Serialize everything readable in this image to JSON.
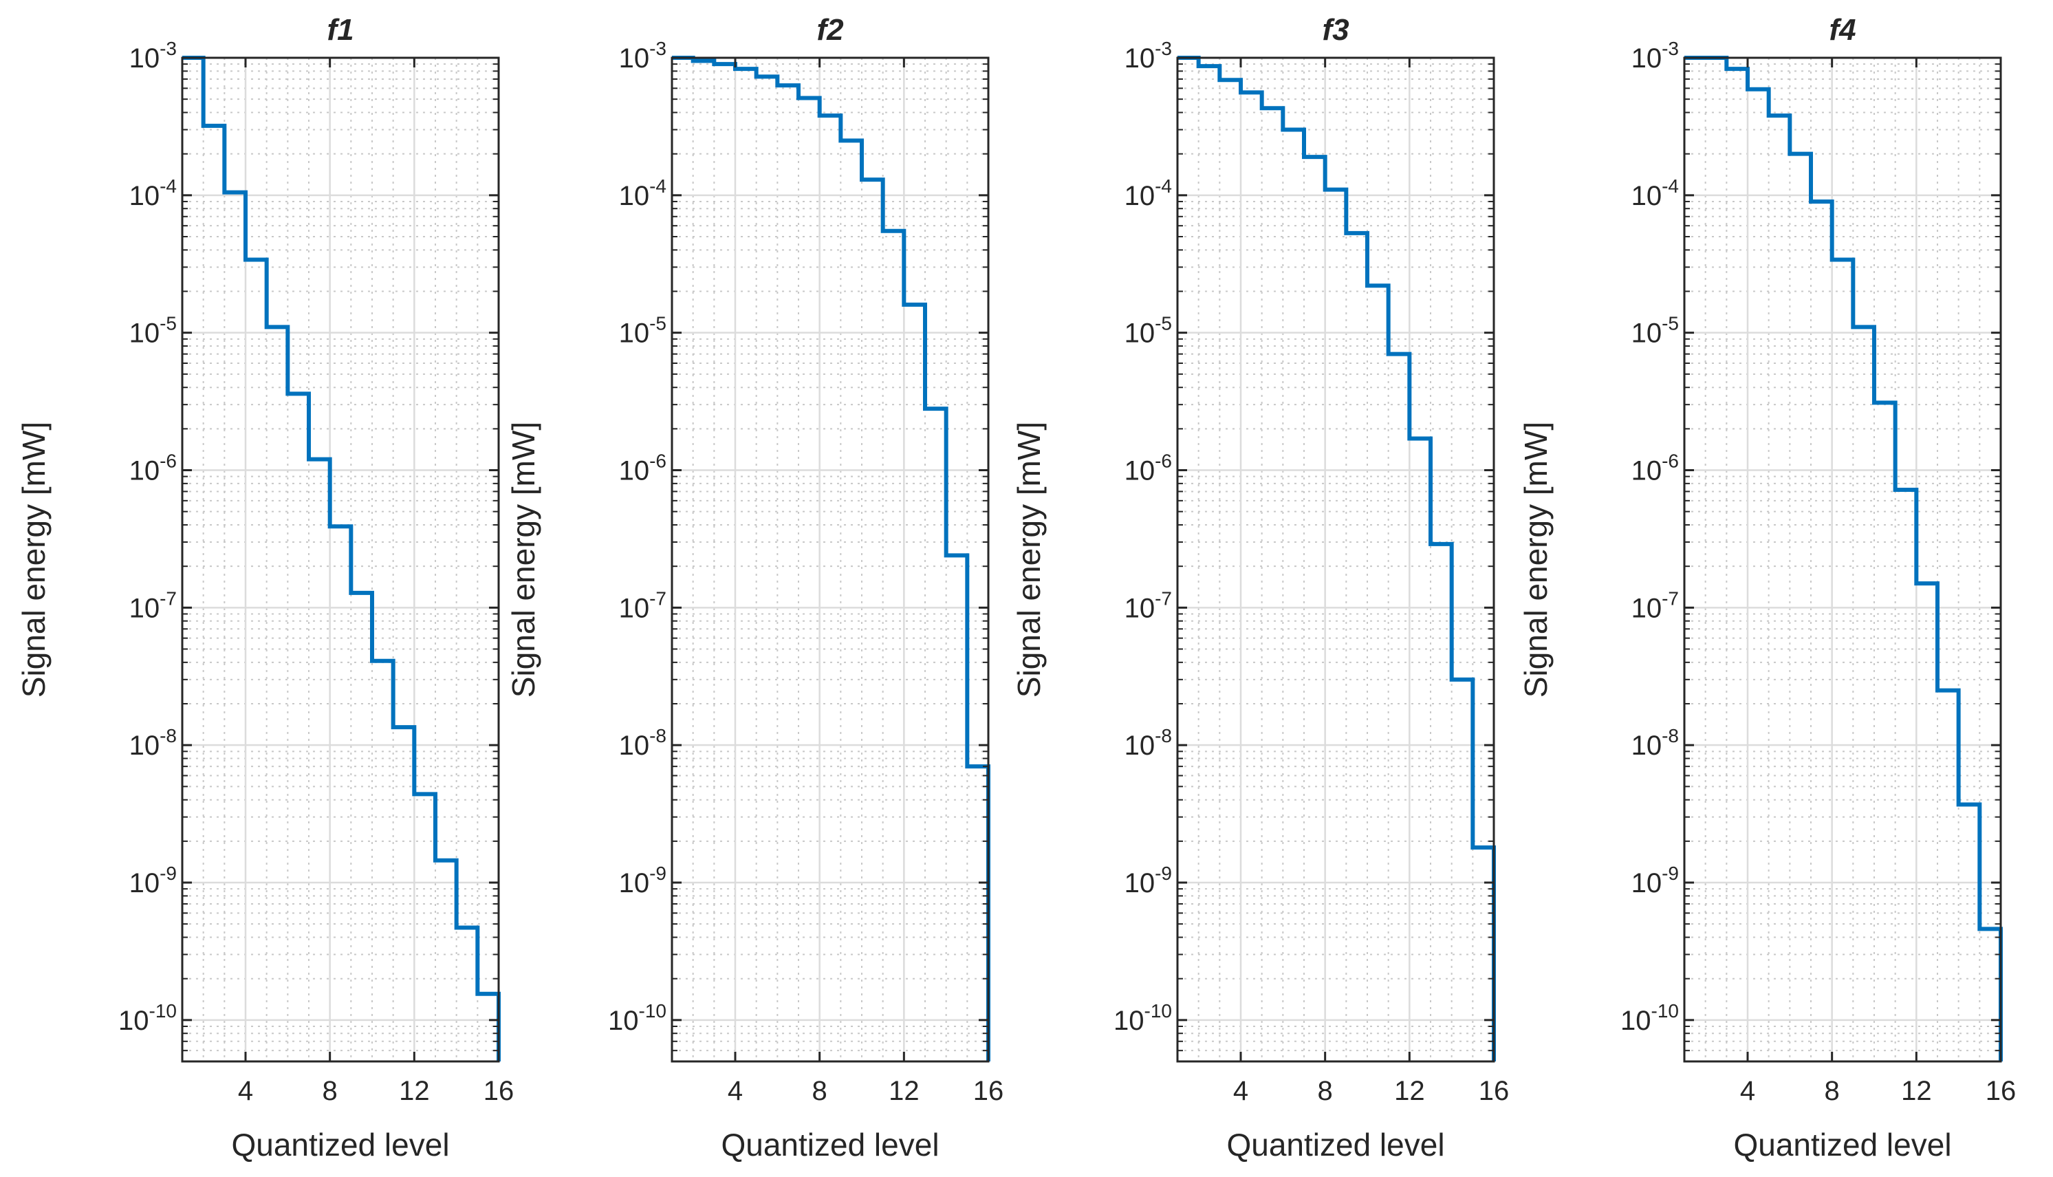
{
  "chart_data": [
    {
      "type": "line",
      "style": "stairs",
      "title": "f1",
      "xlabel": "Quantized level",
      "ylabel": "Signal  energy [mW]",
      "xscale": "linear",
      "yscale": "log",
      "xlim": [
        1,
        16
      ],
      "ylim": [
        5e-11,
        0.001
      ],
      "xticks": [
        4,
        8,
        12,
        16
      ],
      "yticks": [
        {
          "base": "10",
          "exp": "-10",
          "value": 1e-10
        },
        {
          "base": "10",
          "exp": "-9",
          "value": 1e-09
        },
        {
          "base": "10",
          "exp": "-8",
          "value": 1e-08
        },
        {
          "base": "10",
          "exp": "-7",
          "value": 1e-07
        },
        {
          "base": "10",
          "exp": "-6",
          "value": 1e-06
        },
        {
          "base": "10",
          "exp": "-5",
          "value": 1e-05
        },
        {
          "base": "10",
          "exp": "-4",
          "value": 0.0001
        },
        {
          "base": "10",
          "exp": "-3",
          "value": 0.001
        }
      ],
      "grid": "on",
      "line_color": "#0072BD",
      "x": [
        1,
        2,
        3,
        4,
        5,
        6,
        7,
        8,
        9,
        10,
        11,
        12,
        13,
        14,
        15,
        16
      ],
      "y": [
        0.001,
        0.00032,
        0.000105,
        3.4e-05,
        1.1e-05,
        3.6e-06,
        1.2e-06,
        3.9e-07,
        1.28e-07,
        4.1e-08,
        1.35e-08,
        4.4e-09,
        1.45e-09,
        4.7e-10,
        1.55e-10,
        5e-11
      ]
    },
    {
      "type": "line",
      "style": "stairs",
      "title": "f2",
      "xlabel": "Quantized level",
      "ylabel": "Signal  energy [mW]",
      "xscale": "linear",
      "yscale": "log",
      "xlim": [
        1,
        16
      ],
      "ylim": [
        5e-11,
        0.001
      ],
      "xticks": [
        4,
        8,
        12,
        16
      ],
      "yticks": [
        {
          "base": "10",
          "exp": "-10",
          "value": 1e-10
        },
        {
          "base": "10",
          "exp": "-9",
          "value": 1e-09
        },
        {
          "base": "10",
          "exp": "-8",
          "value": 1e-08
        },
        {
          "base": "10",
          "exp": "-7",
          "value": 1e-07
        },
        {
          "base": "10",
          "exp": "-6",
          "value": 1e-06
        },
        {
          "base": "10",
          "exp": "-5",
          "value": 1e-05
        },
        {
          "base": "10",
          "exp": "-4",
          "value": 0.0001
        },
        {
          "base": "10",
          "exp": "-3",
          "value": 0.001
        }
      ],
      "grid": "on",
      "line_color": "#0072BD",
      "x": [
        1,
        2,
        3,
        4,
        5,
        6,
        7,
        8,
        9,
        10,
        11,
        12,
        13,
        14,
        15,
        16
      ],
      "y": [
        0.001,
        0.00095,
        0.0009,
        0.00083,
        0.00073,
        0.00063,
        0.00051,
        0.00038,
        0.00025,
        0.00013,
        5.5e-05,
        1.6e-05,
        2.8e-06,
        2.4e-07,
        7e-09,
        5e-11
      ]
    },
    {
      "type": "line",
      "style": "stairs",
      "title": "f3",
      "xlabel": "Quantized level",
      "ylabel": "Signal  energy [mW]",
      "xscale": "linear",
      "yscale": "log",
      "xlim": [
        1,
        16
      ],
      "ylim": [
        5e-11,
        0.001
      ],
      "xticks": [
        4,
        8,
        12,
        16
      ],
      "yticks": [
        {
          "base": "10",
          "exp": "-10",
          "value": 1e-10
        },
        {
          "base": "10",
          "exp": "-9",
          "value": 1e-09
        },
        {
          "base": "10",
          "exp": "-8",
          "value": 1e-08
        },
        {
          "base": "10",
          "exp": "-7",
          "value": 1e-07
        },
        {
          "base": "10",
          "exp": "-6",
          "value": 1e-06
        },
        {
          "base": "10",
          "exp": "-5",
          "value": 1e-05
        },
        {
          "base": "10",
          "exp": "-4",
          "value": 0.0001
        },
        {
          "base": "10",
          "exp": "-3",
          "value": 0.001
        }
      ],
      "grid": "on",
      "line_color": "#0072BD",
      "x": [
        1,
        2,
        3,
        4,
        5,
        6,
        7,
        8,
        9,
        10,
        11,
        12,
        13,
        14,
        15,
        16
      ],
      "y": [
        0.001,
        0.00087,
        0.00069,
        0.00056,
        0.00043,
        0.0003,
        0.00019,
        0.00011,
        5.3e-05,
        2.2e-05,
        7e-06,
        1.7e-06,
        2.9e-07,
        3e-08,
        1.8e-09,
        5e-11
      ]
    },
    {
      "type": "line",
      "style": "stairs",
      "title": "f4",
      "xlabel": "Quantized level",
      "ylabel": "Signal  energy [mW]",
      "xscale": "linear",
      "yscale": "log",
      "xlim": [
        1,
        16
      ],
      "ylim": [
        5e-11,
        0.001
      ],
      "xticks": [
        4,
        8,
        12,
        16
      ],
      "yticks": [
        {
          "base": "10",
          "exp": "-10",
          "value": 1e-10
        },
        {
          "base": "10",
          "exp": "-9",
          "value": 1e-09
        },
        {
          "base": "10",
          "exp": "-8",
          "value": 1e-08
        },
        {
          "base": "10",
          "exp": "-7",
          "value": 1e-07
        },
        {
          "base": "10",
          "exp": "-6",
          "value": 1e-06
        },
        {
          "base": "10",
          "exp": "-5",
          "value": 1e-05
        },
        {
          "base": "10",
          "exp": "-4",
          "value": 0.0001
        },
        {
          "base": "10",
          "exp": "-3",
          "value": 0.001
        }
      ],
      "grid": "on",
      "line_color": "#0072BD",
      "x": [
        1,
        2,
        3,
        4,
        5,
        6,
        7,
        8,
        9,
        10,
        11,
        12,
        13,
        14,
        15,
        16
      ],
      "y": [
        0.001,
        0.001,
        0.00083,
        0.00059,
        0.00038,
        0.0002,
        9e-05,
        3.4e-05,
        1.1e-05,
        3.1e-06,
        7.2e-07,
        1.5e-07,
        2.5e-08,
        3.7e-09,
        4.6e-10,
        5e-11
      ]
    }
  ]
}
